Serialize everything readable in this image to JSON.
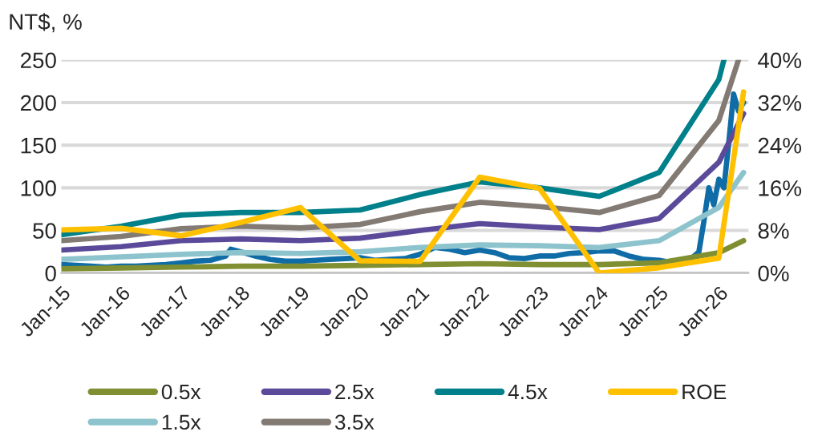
{
  "chart_data": {
    "type": "line",
    "ylabel": "NT$, %",
    "xlim": [
      "2015-01",
      "2026-07"
    ],
    "xticks": [
      {
        "value": "2015-01",
        "label": "Jan-15"
      },
      {
        "value": "2016-01",
        "label": "Jan-16"
      },
      {
        "value": "2017-01",
        "label": "Jan-17"
      },
      {
        "value": "2018-01",
        "label": "Jan-18"
      },
      {
        "value": "2019-01",
        "label": "Jan-19"
      },
      {
        "value": "2020-01",
        "label": "Jan-20"
      },
      {
        "value": "2021-01",
        "label": "Jan-21"
      },
      {
        "value": "2022-01",
        "label": "Jan-22"
      },
      {
        "value": "2023-01",
        "label": "Jan-23"
      },
      {
        "value": "2024-01",
        "label": "Jan-24"
      },
      {
        "value": "2025-01",
        "label": "Jan-25"
      },
      {
        "value": "2026-01",
        "label": "Jan-26"
      }
    ],
    "ylim": [
      0,
      250
    ],
    "yticks": [
      0,
      50,
      100,
      150,
      200,
      250
    ],
    "y2lim": [
      0,
      40
    ],
    "y2ticks": [
      {
        "value": 0,
        "label": "0%"
      },
      {
        "value": 8,
        "label": "8%"
      },
      {
        "value": 16,
        "label": "16%"
      },
      {
        "value": 24,
        "label": "24%"
      },
      {
        "value": 32,
        "label": "32%"
      },
      {
        "value": 40,
        "label": "40%"
      }
    ],
    "grid": "y",
    "legend": "bottom",
    "marker": "none",
    "line_style": "solid",
    "series": [
      {
        "color": "#0f6ca6",
        "x": [
          "2015-01",
          "2015-04",
          "2015-07",
          "2015-10",
          "2016-01",
          "2016-04",
          "2016-07",
          "2016-10",
          "2017-01",
          "2017-04",
          "2017-07",
          "2017-10",
          "2017-11",
          "2018-01",
          "2018-04",
          "2018-07",
          "2018-10",
          "2019-01",
          "2019-04",
          "2019-07",
          "2019-10",
          "2020-01",
          "2020-04",
          "2020-07",
          "2020-10",
          "2021-01",
          "2021-04",
          "2021-07",
          "2021-10",
          "2022-01",
          "2022-04",
          "2022-07",
          "2022-10",
          "2023-01",
          "2023-04",
          "2023-07",
          "2023-10",
          "2024-01",
          "2024-04",
          "2024-07",
          "2024-10",
          "2025-01",
          "2025-04",
          "2025-07",
          "2025-09",
          "2025-10",
          "2025-11",
          "2025-12",
          "2026-01",
          "2026-02",
          "2026-03",
          "2026-04",
          "2026-05",
          "2026-06"
        ],
        "values": [
          10,
          9,
          8,
          7,
          8,
          8,
          9,
          10,
          12,
          14,
          15,
          20,
          28,
          25,
          20,
          16,
          14,
          14,
          15,
          16,
          17,
          18,
          15,
          16,
          17,
          22,
          30,
          28,
          24,
          27,
          24,
          18,
          17,
          20,
          20,
          23,
          24,
          26,
          26,
          20,
          16,
          15,
          12,
          14,
          25,
          60,
          100,
          80,
          110,
          100,
          150,
          210,
          190,
          200
        ]
      },
      {
        "name": "0.5x",
        "color": "#7f8f32",
        "x": [
          "2015-01",
          "2016-01",
          "2017-01",
          "2018-01",
          "2019-01",
          "2020-01",
          "2021-01",
          "2022-01",
          "2023-01",
          "2024-01",
          "2025-01",
          "2026-01",
          "2026-06"
        ],
        "values": [
          5,
          6,
          7,
          8,
          8,
          9,
          10,
          11,
          10,
          10,
          12,
          24,
          38
        ]
      },
      {
        "name": "1.5x",
        "color": "#8cc3cc",
        "x": [
          "2015-01",
          "2016-01",
          "2017-01",
          "2018-01",
          "2019-01",
          "2020-01",
          "2021-01",
          "2022-01",
          "2023-01",
          "2024-01",
          "2025-01",
          "2026-01",
          "2026-06"
        ],
        "values": [
          16,
          19,
          22,
          24,
          23,
          25,
          30,
          33,
          32,
          30,
          38,
          77,
          118
        ]
      },
      {
        "name": "2.5x",
        "color": "#5b4a9a",
        "x": [
          "2015-01",
          "2016-01",
          "2017-01",
          "2018-01",
          "2019-01",
          "2020-01",
          "2021-01",
          "2022-01",
          "2023-01",
          "2024-01",
          "2025-01",
          "2026-01",
          "2026-06"
        ],
        "values": [
          27,
          31,
          38,
          40,
          38,
          41,
          50,
          58,
          54,
          51,
          64,
          130,
          187
        ]
      },
      {
        "name": "3.5x",
        "color": "#827a73",
        "x": [
          "2015-01",
          "2016-01",
          "2017-01",
          "2018-01",
          "2019-01",
          "2020-01",
          "2021-01",
          "2022-01",
          "2023-01",
          "2024-01",
          "2025-01",
          "2026-01",
          "2026-05"
        ],
        "values": [
          38,
          43,
          52,
          55,
          53,
          57,
          72,
          83,
          78,
          71,
          91,
          179,
          250
        ]
      },
      {
        "name": "4.5x",
        "color": "#00808a",
        "x": [
          "2015-01",
          "2016-01",
          "2017-01",
          "2018-01",
          "2019-01",
          "2020-01",
          "2021-01",
          "2022-01",
          "2023-01",
          "2024-01",
          "2025-01",
          "2026-01",
          "2026-02"
        ],
        "values": [
          45,
          55,
          68,
          71,
          71,
          74,
          92,
          107,
          100,
          90,
          118,
          227,
          250
        ]
      },
      {
        "name": "ROE",
        "color": "#ffc000",
        "axis": "y2",
        "x": [
          "2015-01",
          "2016-01",
          "2017-01",
          "2018-01",
          "2019-01",
          "2020-01",
          "2021-01",
          "2022-01",
          "2023-01",
          "2024-01",
          "2025-01",
          "2026-01",
          "2026-06"
        ],
        "values": [
          8.1,
          8.4,
          7,
          9.5,
          12.3,
          2.3,
          2.2,
          18,
          15.9,
          0,
          1,
          2.8,
          34
        ]
      }
    ]
  }
}
